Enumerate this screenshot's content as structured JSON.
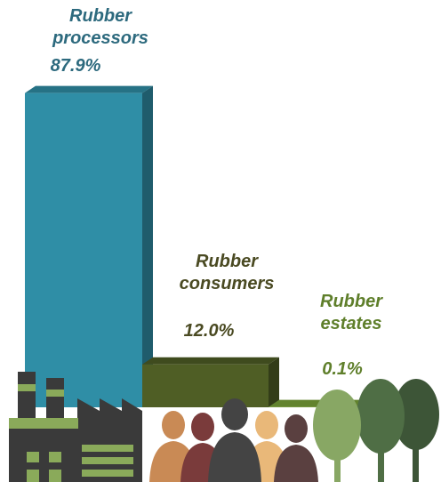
{
  "chart_data": {
    "type": "bar",
    "categories": [
      "Rubber processors",
      "Rubber consumers",
      "Rubber estates"
    ],
    "values": [
      87.9,
      12.0,
      0.1
    ],
    "value_labels": [
      "87.9%",
      "12.0%",
      "0.1%"
    ],
    "colors": [
      "#2f8ea6",
      "#4f5e25",
      "#7aa43a"
    ],
    "label_colors": [
      "#2d6a7e",
      "#4a4a22",
      "#5f7f2b"
    ]
  }
}
